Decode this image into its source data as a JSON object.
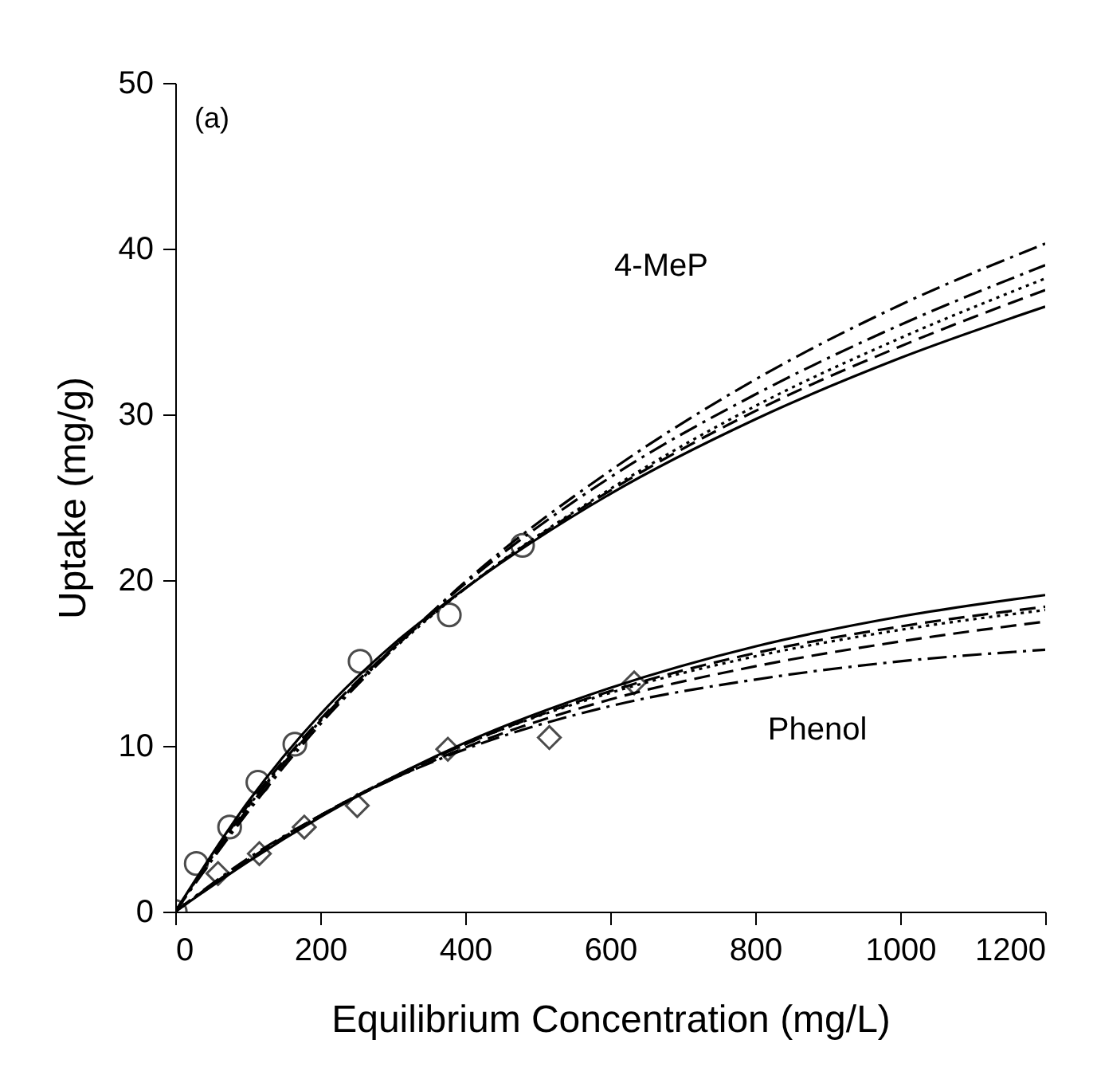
{
  "chart_data": {
    "type": "scatter",
    "xlabel": "Equilibrium Concentration (mg/L)",
    "ylabel": "Uptake (mg/g)",
    "xlim": [
      0,
      1200
    ],
    "ylim": [
      0,
      50
    ],
    "xticks": [
      0,
      200,
      400,
      600,
      800,
      1000,
      1200
    ],
    "yticks": [
      0,
      10,
      20,
      30,
      40,
      50
    ],
    "grid": false,
    "legend": false,
    "annotations": [
      "(a)",
      "4-MeP",
      "Phenol"
    ],
    "series": [
      {
        "marker": "circle",
        "color": "#000000",
        "x": [
          0,
          29,
          75,
          114,
          165,
          255,
          378,
          479
        ],
        "values": [
          0,
          2.9,
          5.1,
          7.8,
          10.1,
          15.1,
          17.9,
          22.1
        ]
      },
      {
        "marker": "diamond",
        "color": "#000000",
        "x": [
          59,
          116,
          178,
          251,
          376,
          516,
          633
        ],
        "values": [
          2.3,
          3.5,
          5.1,
          6.4,
          9.8,
          10.5,
          13.8
        ]
      },
      {
        "type": "line",
        "line_style": "solid",
        "color": "#000000",
        "x": [
          0,
          100,
          200,
          300,
          400,
          600,
          800,
          1000,
          1200
        ],
        "values": [
          0,
          6.6,
          11.9,
          16.1,
          19.5,
          25.2,
          29.7,
          33.4,
          36.5
        ]
      },
      {
        "type": "line",
        "line_style": "dashed",
        "color": "#000000",
        "x": [
          0,
          100,
          200,
          300,
          400,
          600,
          800,
          1000,
          1200
        ],
        "values": [
          0,
          6.4,
          11.6,
          15.9,
          19.5,
          25.4,
          30.2,
          34.1,
          37.5
        ]
      },
      {
        "type": "line",
        "line_style": "dotted",
        "color": "#000000",
        "x": [
          0,
          100,
          200,
          300,
          400,
          600,
          800,
          1000,
          1200
        ],
        "values": [
          0,
          6.3,
          11.5,
          15.8,
          19.5,
          25.5,
          30.5,
          34.6,
          38.2
        ]
      },
      {
        "type": "line",
        "line_style": "dashdot",
        "color": "#000000",
        "x": [
          0,
          100,
          200,
          300,
          400,
          600,
          800,
          1000,
          1200
        ],
        "values": [
          0,
          6.2,
          11.5,
          15.9,
          19.8,
          26.2,
          31.2,
          35.4,
          39.0
        ]
      },
      {
        "type": "line",
        "line_style": "dashdot",
        "color": "#000000",
        "x": [
          0,
          100,
          200,
          300,
          400,
          600,
          800,
          1000,
          1200
        ],
        "values": [
          0,
          6.0,
          11.3,
          15.8,
          19.9,
          26.6,
          32.1,
          36.6,
          40.3
        ]
      },
      {
        "type": "line",
        "line_style": "solid",
        "color": "#000000",
        "x": [
          0,
          100,
          200,
          300,
          400,
          600,
          800,
          1000,
          1200
        ],
        "values": [
          0,
          3.0,
          5.7,
          8.1,
          10.2,
          13.5,
          16.0,
          17.8,
          19.1
        ]
      },
      {
        "type": "line",
        "line_style": "dashed",
        "color": "#000000",
        "x": [
          0,
          100,
          200,
          300,
          400,
          600,
          800,
          1000,
          1200
        ],
        "values": [
          0,
          3.1,
          5.8,
          8.1,
          10.1,
          13.3,
          15.6,
          17.2,
          18.4
        ]
      },
      {
        "type": "line",
        "line_style": "dotted",
        "color": "#000000",
        "x": [
          0,
          100,
          200,
          300,
          400,
          600,
          800,
          1000,
          1200
        ],
        "values": [
          0,
          3.1,
          5.8,
          8.1,
          10.1,
          13.2,
          15.4,
          17.0,
          18.2
        ]
      },
      {
        "type": "line",
        "line_style": "dashed",
        "color": "#000000",
        "x": [
          0,
          100,
          200,
          300,
          400,
          600,
          800,
          1000,
          1200
        ],
        "values": [
          0,
          3.1,
          5.8,
          8.0,
          9.9,
          12.8,
          14.8,
          16.3,
          17.5
        ]
      },
      {
        "type": "line",
        "line_style": "dashdot",
        "color": "#000000",
        "x": [
          0,
          100,
          200,
          300,
          400,
          600,
          800,
          1000,
          1200
        ],
        "values": [
          0,
          3.2,
          5.8,
          8.0,
          9.8,
          12.4,
          14.0,
          15.1,
          15.8
        ]
      }
    ]
  }
}
